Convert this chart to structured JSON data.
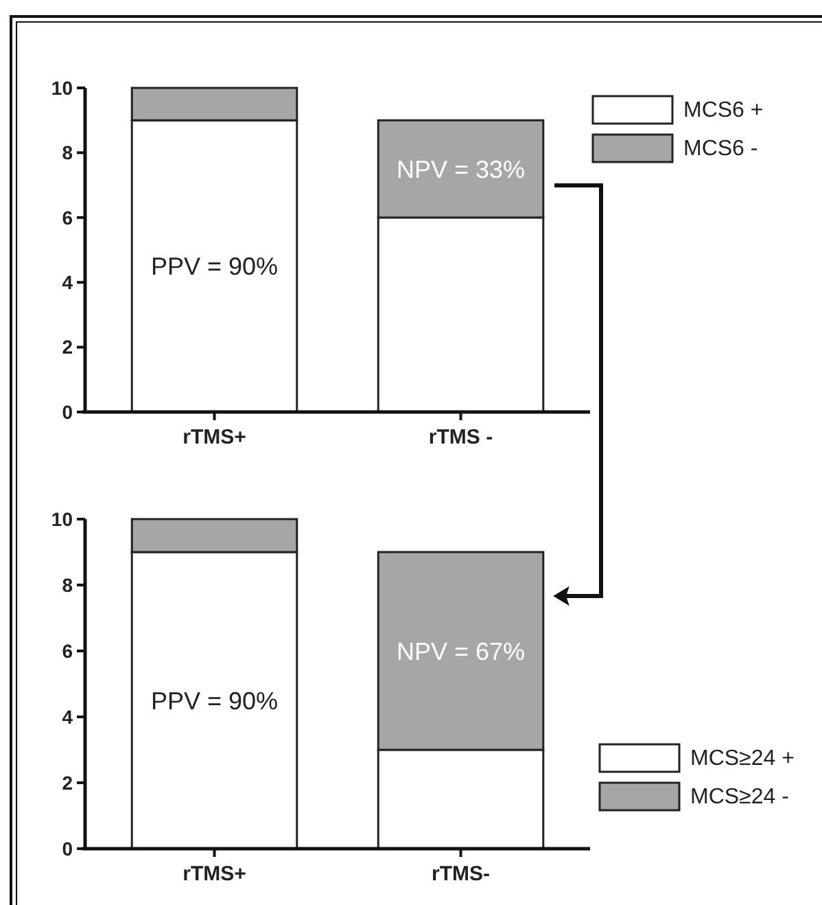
{
  "chart_data": [
    {
      "type": "bar",
      "stacked": true,
      "categories": [
        "rTMS+",
        "rTMS -"
      ],
      "series": [
        {
          "name": "MCS6 +",
          "color": "#ffffff",
          "values": [
            9,
            6
          ]
        },
        {
          "name": "MCS6 -",
          "color": "#a6a6a6",
          "values": [
            1,
            3
          ]
        }
      ],
      "ylim": [
        0,
        10
      ],
      "yticks": [
        0,
        2,
        4,
        6,
        8,
        10
      ],
      "legend": "top right",
      "grid": false,
      "annotations": [
        "PPV = 90%",
        "NPV = 33%"
      ]
    },
    {
      "type": "bar",
      "stacked": true,
      "categories": [
        "rTMS+",
        "rTMS-"
      ],
      "series": [
        {
          "name": "MCS≥24 +",
          "color": "#ffffff",
          "values": [
            9,
            3
          ]
        },
        {
          "name": "MCS≥24 -",
          "color": "#a6a6a6",
          "values": [
            1,
            6
          ]
        }
      ],
      "ylim": [
        0,
        10
      ],
      "yticks": [
        0,
        2,
        4,
        6,
        8,
        10
      ],
      "legend": "bottom right",
      "grid": false,
      "annotations": [
        "PPV = 90%",
        "NPV = 67%"
      ]
    }
  ]
}
